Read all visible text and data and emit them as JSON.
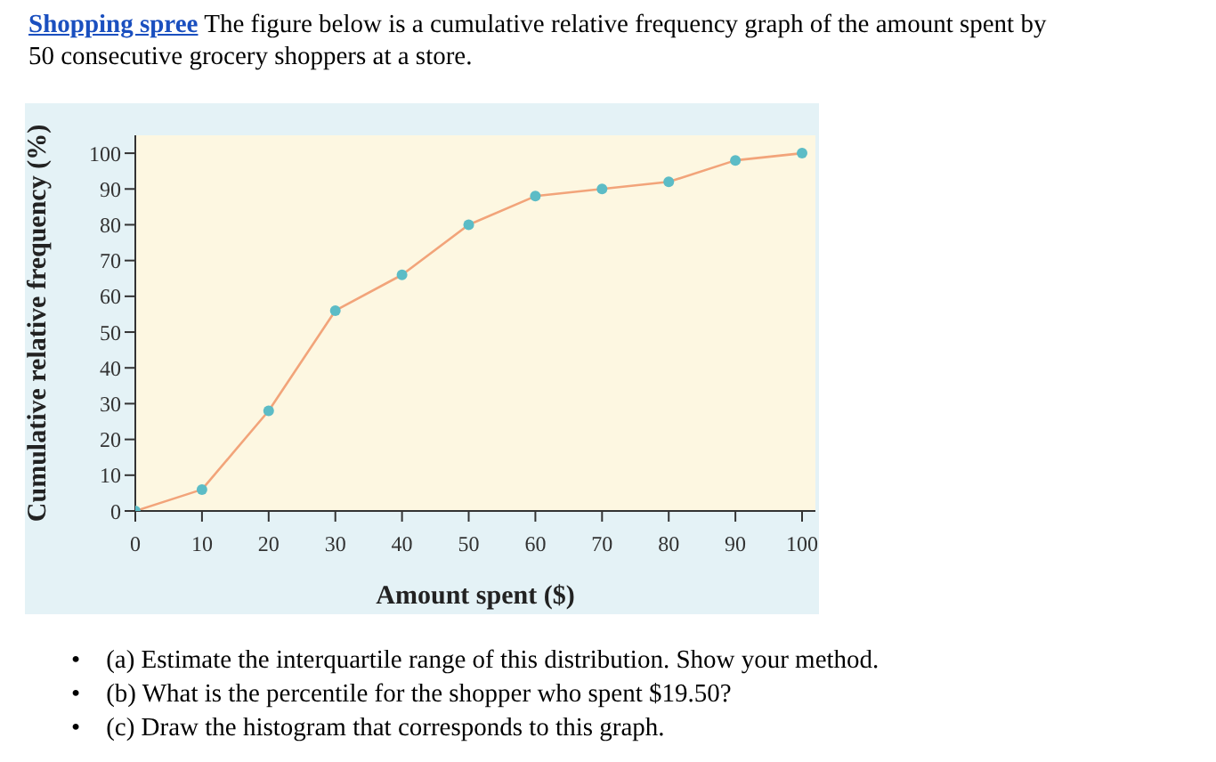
{
  "chart_data": {
    "type": "line",
    "title": "Shopping spree",
    "subtitle": "The figure below is a cumulative relative frequency graph of the amount spent by 50 consecutive grocery shoppers at a store.",
    "xlabel": "Amount spent ($)",
    "ylabel": "Cumulative relative frequency (%)",
    "x": [
      0,
      10,
      20,
      30,
      40,
      50,
      60,
      70,
      80,
      90,
      100
    ],
    "series": [
      {
        "color": "#f2a47a",
        "colors": [
          "#5cbcc6",
          "#5cbcc6",
          "#5cbcc6",
          "#5cbcc6",
          "#5cbcc6",
          "#5cbcc6",
          "#5cbcc6",
          "#5cbcc6",
          "#5cbcc6",
          "#5cbcc6",
          "#5cbcc6"
        ],
        "values": [
          0,
          6,
          28,
          56,
          66,
          80,
          88,
          90,
          92,
          98,
          100
        ]
      }
    ],
    "marker": "circle",
    "xlim": [
      0,
      102
    ],
    "xticks": [
      0,
      10,
      20,
      30,
      40,
      50,
      60,
      70,
      80,
      90,
      100
    ],
    "ylim": [
      0,
      105
    ],
    "yticks": [
      0,
      10,
      20,
      30,
      40,
      50,
      60,
      70,
      80,
      90,
      100
    ],
    "grid": false,
    "annotations": [
      "• (a) Estimate the interquartile range of this distribution. Show your method.",
      "• (b) What is the percentile for the shopper who spent $19.50?",
      "• (c) Draw the histogram that corresponds to this graph."
    ]
  }
}
